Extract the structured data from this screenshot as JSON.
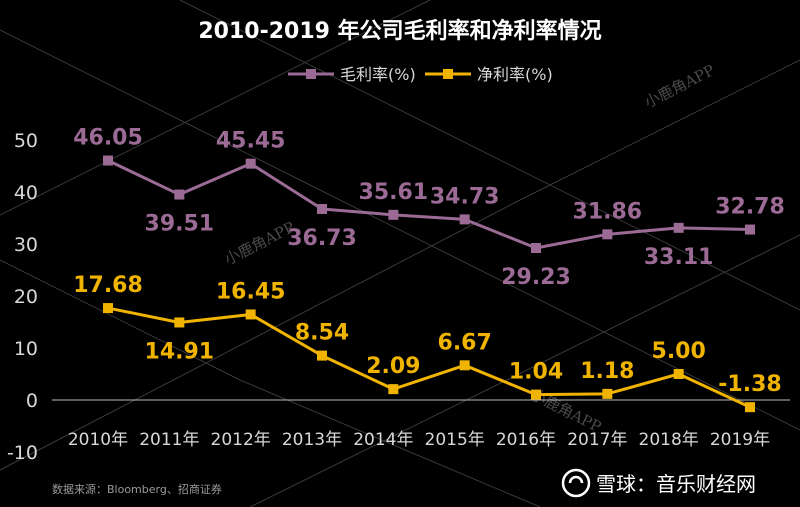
{
  "chart_data": {
    "type": "line",
    "title": "2010-2019 年公司毛利率和净利率情况",
    "categories": [
      "2010年",
      "2011年",
      "2012年",
      "2013年",
      "2014年",
      "2015年",
      "2016年",
      "2017年",
      "2018年",
      "2019年"
    ],
    "series": [
      {
        "name": "毛利率(%)",
        "color": "#9b6b96",
        "values": [
          46.05,
          39.51,
          45.45,
          36.73,
          35.61,
          34.73,
          29.23,
          31.86,
          33.11,
          32.78
        ],
        "labels": [
          "46.05",
          "39.51",
          "45.45",
          "36.73",
          "35.61",
          "34.73",
          "29.23",
          "31.86",
          "33.11",
          "32.78"
        ],
        "label_positions": [
          "above",
          "below",
          "above",
          "below",
          "above",
          "above",
          "below",
          "above",
          "below",
          "above"
        ]
      },
      {
        "name": "净利率(%)",
        "color": "#f0b400",
        "values": [
          17.68,
          14.91,
          16.45,
          8.54,
          2.09,
          6.67,
          1.04,
          1.18,
          5.0,
          -1.38
        ],
        "labels": [
          "17.68",
          "14.91",
          "16.45",
          "8.54",
          "2.09",
          "6.67",
          "1.04",
          "1.18",
          "5.00",
          "-1.38"
        ],
        "label_positions": [
          "above",
          "below",
          "above",
          "above",
          "above",
          "above",
          "above",
          "above",
          "above",
          "above"
        ]
      }
    ],
    "yticks": [
      "-10",
      "0",
      "10",
      "20",
      "30",
      "40",
      "50"
    ],
    "ylim": [
      -10,
      50
    ],
    "grid": false,
    "legend": "top-center"
  },
  "source": "数据来源：Bloomberg、招商证券",
  "watermark": {
    "text": "小鹿角APP",
    "brand": "雪球：音乐财经网"
  }
}
